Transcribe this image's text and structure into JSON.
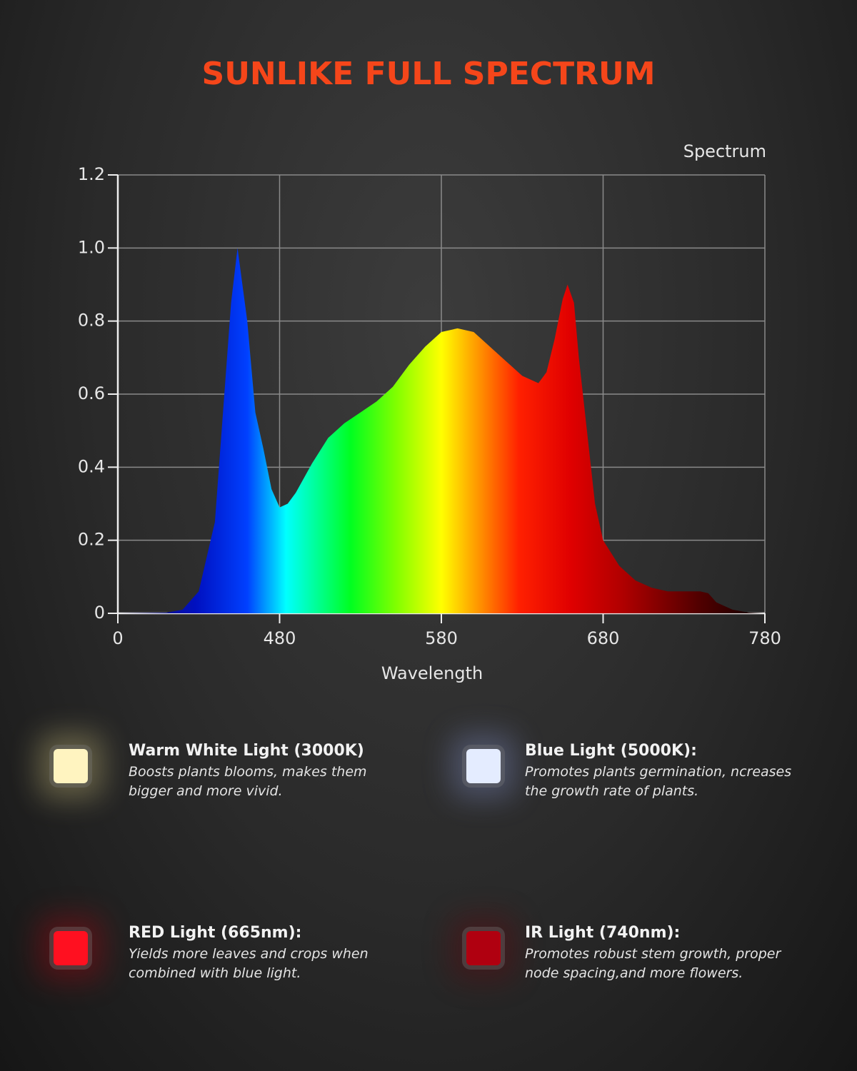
{
  "title": "SUNLIKE FULL SPECTRUM",
  "chart_data": {
    "type": "area",
    "xlabel": "Wavelength",
    "x": [
      380,
      410,
      420,
      430,
      440,
      445,
      450,
      454,
      460,
      465,
      470,
      475,
      480,
      485,
      490,
      500,
      510,
      520,
      530,
      540,
      550,
      560,
      570,
      580,
      590,
      600,
      610,
      620,
      630,
      640,
      645,
      650,
      655,
      658,
      662,
      665,
      670,
      675,
      680,
      690,
      700,
      710,
      720,
      730,
      740,
      745,
      750,
      760,
      770,
      780
    ],
    "series": [
      {
        "name": "Spectrum",
        "values": [
          0,
          0.002,
          0.01,
          0.06,
          0.25,
          0.55,
          0.85,
          1.0,
          0.8,
          0.55,
          0.45,
          0.34,
          0.29,
          0.3,
          0.33,
          0.41,
          0.48,
          0.52,
          0.55,
          0.58,
          0.62,
          0.68,
          0.73,
          0.77,
          0.78,
          0.77,
          0.73,
          0.69,
          0.65,
          0.63,
          0.66,
          0.75,
          0.86,
          0.9,
          0.85,
          0.7,
          0.5,
          0.3,
          0.2,
          0.13,
          0.09,
          0.07,
          0.06,
          0.06,
          0.06,
          0.055,
          0.03,
          0.01,
          0.002,
          0
        ]
      }
    ],
    "xlim": [
      380,
      780
    ],
    "xticks": [
      {
        "value": 380,
        "label": "0"
      },
      480,
      580,
      680,
      780
    ],
    "ylim": [
      0,
      1.2
    ],
    "yticks": [
      0,
      0.2,
      0.4,
      0.6,
      0.8,
      {
        "value": 1,
        "label": "1.0"
      },
      1.2
    ],
    "grid": true
  },
  "features": [
    {
      "title": "Warm White Light (3000K)",
      "description": "Boosts plants blooms, makes them bigger and more vivid."
    },
    {
      "title": "Blue Light (5000K):",
      "description": "Promotes plants germination, ncreases the growth rate of plants."
    },
    {
      "title": "RED Light (665nm):",
      "description": "Yields more leaves and crops when combined with blue light."
    },
    {
      "title": "IR Light (740nm):",
      "description": "Promotes robust stem growth, proper node spacing,and more flowers."
    }
  ]
}
